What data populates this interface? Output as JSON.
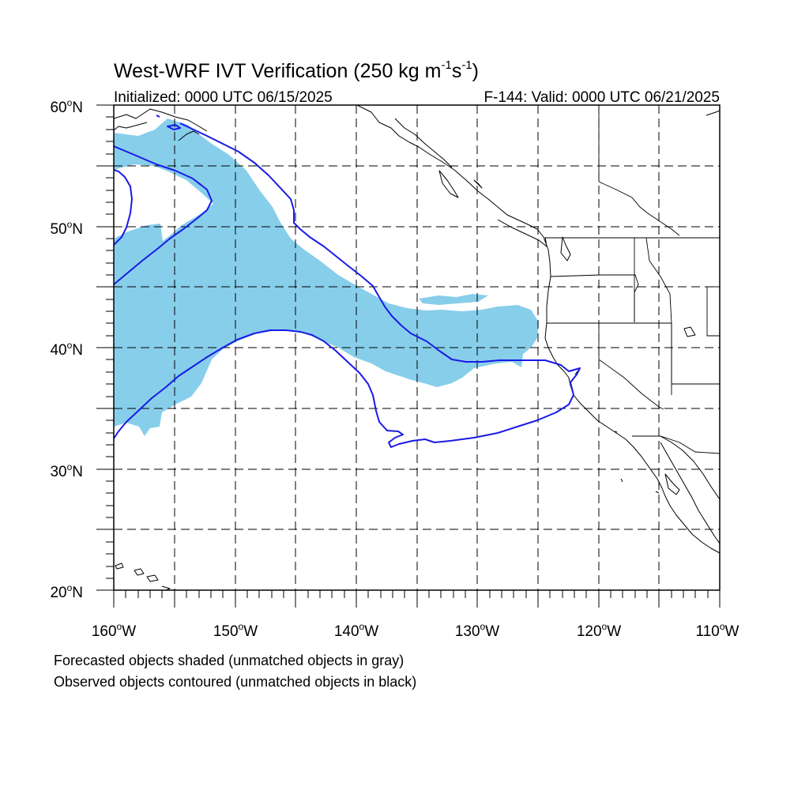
{
  "title": {
    "main": "West-WRF IVT Verification (250 kg m",
    "sup1": "-1",
    "mid": "s",
    "sup2": "-1",
    "end": ")"
  },
  "subtitle_left": "Initialized: 0000 UTC 06/15/2025",
  "subtitle_right": "F-144: Valid: 0000 UTC 06/21/2025",
  "map": {
    "lon_range": [
      -160,
      -110
    ],
    "lat_range": [
      20,
      60
    ],
    "lat_labels": [
      {
        "deg": "60",
        "unit": "o",
        "hemi": "N",
        "value": 60
      },
      {
        "deg": "50",
        "unit": "o",
        "hemi": "N",
        "value": 50
      },
      {
        "deg": "40",
        "unit": "o",
        "hemi": "N",
        "value": 40
      },
      {
        "deg": "30",
        "unit": "o",
        "hemi": "N",
        "value": 30
      },
      {
        "deg": "20",
        "unit": "o",
        "hemi": "N",
        "value": 20
      }
    ],
    "lon_labels": [
      {
        "deg": "160",
        "unit": "o",
        "hemi": "W",
        "value": -160
      },
      {
        "deg": "150",
        "unit": "o",
        "hemi": "W",
        "value": -150
      },
      {
        "deg": "140",
        "unit": "o",
        "hemi": "W",
        "value": -140
      },
      {
        "deg": "130",
        "unit": "o",
        "hemi": "W",
        "value": -130
      },
      {
        "deg": "120",
        "unit": "o",
        "hemi": "W",
        "value": -120
      },
      {
        "deg": "110",
        "unit": "o",
        "hemi": "W",
        "value": -110
      }
    ],
    "forecast_color": "#87ceeb",
    "observed_color": "#1a1ae6",
    "coast_color": "#000000",
    "grid_style": "dashed"
  },
  "notes": {
    "line1": "Forecasted objects shaded (unmatched objects in gray)",
    "line2": "Observed objects contoured (unmatched objects in black)"
  }
}
